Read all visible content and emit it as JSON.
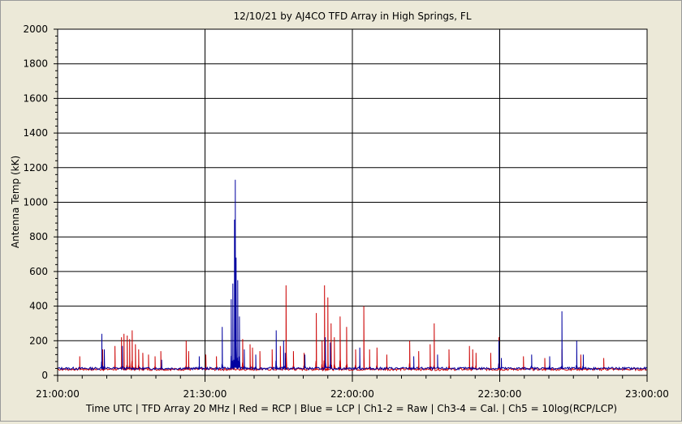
{
  "chart_data": {
    "type": "line",
    "title": "12/10/21  by  AJ4CO TFD Array  in  High Springs, FL",
    "ylabel": "Antenna Temp (kK)",
    "footer": "Time UTC | TFD Array 20 MHz | Red = RCP | Blue = LCP | Ch1-2 = Raw | Ch3-4 = Cal. | Ch5 = 10log(RCP/LCP)",
    "ylim": [
      0,
      2000
    ],
    "y_ticks": [
      "0",
      "200",
      "400",
      "600",
      "800",
      "1000",
      "1200",
      "1400",
      "1600",
      "1800",
      "2000"
    ],
    "xlim": [
      "21:00:00",
      "23:00:00"
    ],
    "x_ticks": [
      "21:00:00",
      "21:30:00",
      "22:00:00",
      "22:30:00",
      "23:00:00"
    ],
    "grid": true,
    "colors": {
      "rcp": "#cc0000",
      "lcp": "#0000a0",
      "plot_bg": "#ffffff",
      "window_bg": "#ece9d8"
    },
    "baseline": {
      "RCP": 35,
      "LCP": 40
    },
    "series": [
      {
        "name": "RCP",
        "spikes": [
          [
            "21:04:30",
            110
          ],
          [
            "21:09:10",
            150
          ],
          [
            "21:11:40",
            170
          ],
          [
            "21:13:00",
            220
          ],
          [
            "21:13:30",
            240
          ],
          [
            "21:14:10",
            230
          ],
          [
            "21:14:40",
            210
          ],
          [
            "21:15:10",
            260
          ],
          [
            "21:15:50",
            180
          ],
          [
            "21:16:30",
            150
          ],
          [
            "21:17:20",
            130
          ],
          [
            "21:18:30",
            120
          ],
          [
            "21:19:50",
            110
          ],
          [
            "21:21:00",
            140
          ],
          [
            "21:26:10",
            200
          ],
          [
            "21:26:40",
            140
          ],
          [
            "21:30:10",
            120
          ],
          [
            "21:32:20",
            110
          ],
          [
            "21:37:40",
            210
          ],
          [
            "21:39:10",
            180
          ],
          [
            "21:39:40",
            160
          ],
          [
            "21:41:10",
            140
          ],
          [
            "21:43:40",
            150
          ],
          [
            "21:45:20",
            170
          ],
          [
            "21:46:30",
            520
          ],
          [
            "21:48:00",
            140
          ],
          [
            "21:50:10",
            130
          ],
          [
            "21:52:40",
            360
          ],
          [
            "21:53:50",
            200
          ],
          [
            "21:54:20",
            520
          ],
          [
            "21:55:00",
            450
          ],
          [
            "21:55:40",
            300
          ],
          [
            "21:56:20",
            220
          ],
          [
            "21:57:30",
            340
          ],
          [
            "21:58:50",
            280
          ],
          [
            "22:00:40",
            150
          ],
          [
            "22:02:20",
            400
          ],
          [
            "22:03:30",
            150
          ],
          [
            "22:05:00",
            160
          ],
          [
            "22:07:00",
            120
          ],
          [
            "22:11:40",
            200
          ],
          [
            "22:13:30",
            140
          ],
          [
            "22:15:50",
            180
          ],
          [
            "22:16:40",
            300
          ],
          [
            "22:19:40",
            150
          ],
          [
            "22:23:50",
            170
          ],
          [
            "22:24:30",
            150
          ],
          [
            "22:25:10",
            130
          ],
          [
            "22:28:10",
            130
          ],
          [
            "22:29:50",
            220
          ],
          [
            "22:34:50",
            110
          ],
          [
            "22:39:10",
            100
          ],
          [
            "22:42:40",
            150
          ],
          [
            "22:46:30",
            120
          ],
          [
            "22:51:10",
            100
          ]
        ]
      },
      {
        "name": "LCP",
        "spikes": [
          [
            "21:09:00",
            240
          ],
          [
            "21:09:30",
            150
          ],
          [
            "21:13:10",
            170
          ],
          [
            "21:21:10",
            90
          ],
          [
            "21:28:50",
            110
          ],
          [
            "21:33:30",
            280
          ],
          [
            "21:35:20",
            440
          ],
          [
            "21:35:40",
            530
          ],
          [
            "21:36:00",
            900
          ],
          [
            "21:36:10",
            1130
          ],
          [
            "21:36:20",
            680
          ],
          [
            "21:36:40",
            550
          ],
          [
            "21:37:00",
            340
          ],
          [
            "21:38:00",
            150
          ],
          [
            "21:40:20",
            120
          ],
          [
            "21:44:30",
            260
          ],
          [
            "21:46:00",
            200
          ],
          [
            "21:46:20",
            130
          ],
          [
            "21:50:20",
            120
          ],
          [
            "21:54:30",
            220
          ],
          [
            "21:55:30",
            190
          ],
          [
            "22:01:30",
            160
          ],
          [
            "22:12:30",
            110
          ],
          [
            "22:17:20",
            120
          ],
          [
            "22:29:50",
            200
          ],
          [
            "22:30:20",
            100
          ],
          [
            "22:36:30",
            120
          ],
          [
            "22:40:10",
            110
          ],
          [
            "22:42:40",
            370
          ],
          [
            "22:45:40",
            200
          ],
          [
            "22:47:00",
            120
          ]
        ]
      }
    ]
  }
}
